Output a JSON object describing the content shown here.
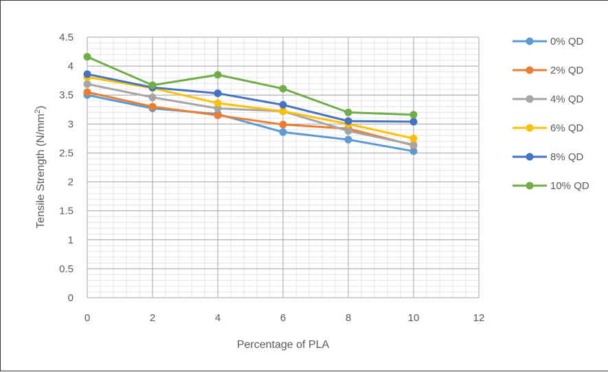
{
  "chart_data": {
    "type": "line",
    "x": [
      0,
      2,
      4,
      6,
      8,
      10
    ],
    "xlabel": "Percentage of PLA",
    "ylabel": "Tensile Strength (N/mm²)",
    "ylabel_parts": {
      "main": "Tensile Strength (N/mm",
      "sup": "2",
      "tail": ")"
    },
    "xlim": [
      0,
      12
    ],
    "ylim": [
      0,
      4.5
    ],
    "x_ticks": [
      "0",
      "2",
      "4",
      "6",
      "8",
      "10",
      "12"
    ],
    "y_ticks": [
      "0",
      "0.5",
      "1",
      "1.5",
      "2",
      "2.5",
      "3",
      "3.5",
      "4",
      "4.5"
    ],
    "grid": true,
    "legend_position": "right",
    "series": [
      {
        "name": "0% QD",
        "color": "#5B9BD5",
        "values": [
          3.5,
          3.27,
          3.17,
          2.86,
          2.73,
          2.53
        ]
      },
      {
        "name": "2% QD",
        "color": "#ED7D31",
        "values": [
          3.55,
          3.3,
          3.15,
          2.99,
          2.92,
          2.63
        ]
      },
      {
        "name": "4% QD",
        "color": "#A5A5A5",
        "values": [
          3.69,
          3.46,
          3.27,
          3.22,
          2.88,
          2.64
        ]
      },
      {
        "name": "6% QD",
        "color": "#FFC000",
        "values": [
          3.81,
          3.62,
          3.36,
          3.22,
          3.0,
          2.75
        ]
      },
      {
        "name": "8% QD",
        "color": "#4472C4",
        "values": [
          3.86,
          3.63,
          3.53,
          3.33,
          3.05,
          3.04
        ]
      },
      {
        "name": "10% QD",
        "color": "#70AD47",
        "values": [
          4.16,
          3.67,
          3.85,
          3.61,
          3.2,
          3.16
        ]
      }
    ]
  }
}
